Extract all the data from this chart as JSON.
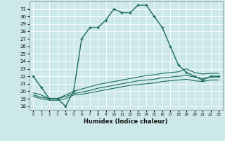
{
  "xlabel": "Humidex (Indice chaleur)",
  "bg_color": "#cce8e8",
  "line_color": "#1a6b5a",
  "grid_color": "#b8d8d8",
  "xlim": [
    -0.5,
    23.5
  ],
  "ylim": [
    17.5,
    32.0
  ],
  "yticks": [
    18,
    19,
    20,
    21,
    22,
    23,
    24,
    25,
    26,
    27,
    28,
    29,
    30,
    31
  ],
  "xticks": [
    0,
    1,
    2,
    3,
    4,
    5,
    6,
    7,
    8,
    9,
    10,
    11,
    12,
    13,
    14,
    15,
    16,
    17,
    18,
    19,
    20,
    21,
    22,
    23
  ],
  "series1_x": [
    0,
    1,
    2,
    3,
    4,
    5,
    6,
    7,
    8,
    9,
    10,
    11,
    12,
    13,
    14,
    15,
    16,
    17,
    18,
    19,
    20,
    21,
    22,
    23
  ],
  "series1_y": [
    22.0,
    20.5,
    19.0,
    19.0,
    18.0,
    20.0,
    27.0,
    28.5,
    28.5,
    29.5,
    31.0,
    30.5,
    30.5,
    31.5,
    31.5,
    30.0,
    28.5,
    26.0,
    23.5,
    22.5,
    22.0,
    21.5,
    22.0,
    22.0
  ],
  "series2_x": [
    0,
    1,
    2,
    3,
    4,
    5,
    6,
    7,
    8,
    9,
    10,
    11,
    12,
    13,
    14,
    15,
    16,
    17,
    18,
    19,
    20,
    21,
    22,
    23
  ],
  "series2_y": [
    19.8,
    19.5,
    19.0,
    19.0,
    19.5,
    20.0,
    20.3,
    20.6,
    20.9,
    21.1,
    21.3,
    21.5,
    21.7,
    21.9,
    22.1,
    22.2,
    22.4,
    22.5,
    22.6,
    23.0,
    22.5,
    22.3,
    22.4,
    22.4
  ],
  "series3_x": [
    0,
    1,
    2,
    3,
    4,
    5,
    6,
    7,
    8,
    9,
    10,
    11,
    12,
    13,
    14,
    15,
    16,
    17,
    18,
    19,
    20,
    21,
    22,
    23
  ],
  "series3_y": [
    19.5,
    19.2,
    19.0,
    19.0,
    19.3,
    19.7,
    19.9,
    20.1,
    20.4,
    20.6,
    20.8,
    21.0,
    21.2,
    21.4,
    21.5,
    21.6,
    21.8,
    21.9,
    22.0,
    22.1,
    21.9,
    21.7,
    21.9,
    21.9
  ],
  "series4_x": [
    0,
    1,
    2,
    3,
    4,
    5,
    6,
    7,
    8,
    9,
    10,
    11,
    12,
    13,
    14,
    15,
    16,
    17,
    18,
    19,
    20,
    21,
    22,
    23
  ],
  "series4_y": [
    19.3,
    19.0,
    18.8,
    18.8,
    19.0,
    19.5,
    19.6,
    19.8,
    20.0,
    20.2,
    20.4,
    20.6,
    20.8,
    20.9,
    21.0,
    21.1,
    21.3,
    21.4,
    21.5,
    21.6,
    21.4,
    21.3,
    21.5,
    21.5
  ]
}
